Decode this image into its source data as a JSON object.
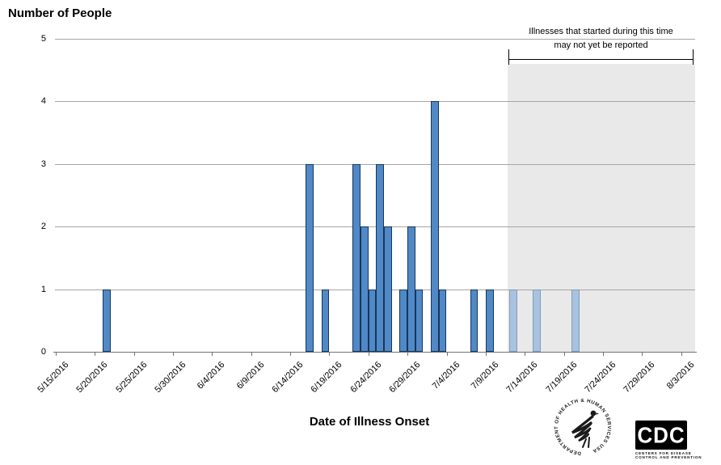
{
  "chart_data": {
    "type": "bar",
    "title": "Number of People",
    "xlabel": "Date of Illness Onset",
    "ylim": [
      0,
      5
    ],
    "yticks": [
      0,
      1,
      2,
      3,
      4,
      5
    ],
    "grid": "horizontal",
    "x_start_date": "5/15/2016",
    "x_tick_interval_days": 5,
    "x_tick_labels": [
      "5/15/2016",
      "5/20/2016",
      "5/25/2016",
      "5/30/2016",
      "6/4/2016",
      "6/9/2016",
      "6/14/2016",
      "6/19/2016",
      "6/24/2016",
      "6/29/2016",
      "7/4/2016",
      "7/9/2016",
      "7/14/2016",
      "7/19/2016",
      "7/24/2016",
      "7/29/2016",
      "8/3/2016"
    ],
    "bars": [
      {
        "date": "5/21/2016",
        "days_from_start": 6,
        "count": 1,
        "pending": false
      },
      {
        "date": "6/16/2016",
        "days_from_start": 32,
        "count": 3,
        "pending": false
      },
      {
        "date": "6/18/2016",
        "days_from_start": 34,
        "count": 1,
        "pending": false
      },
      {
        "date": "6/22/2016",
        "days_from_start": 38,
        "count": 3,
        "pending": false
      },
      {
        "date": "6/23/2016",
        "days_from_start": 39,
        "count": 2,
        "pending": false
      },
      {
        "date": "6/24/2016",
        "days_from_start": 40,
        "count": 1,
        "pending": false
      },
      {
        "date": "6/25/2016",
        "days_from_start": 41,
        "count": 3,
        "pending": false
      },
      {
        "date": "6/26/2016",
        "days_from_start": 42,
        "count": 2,
        "pending": false
      },
      {
        "date": "6/28/2016",
        "days_from_start": 44,
        "count": 1,
        "pending": false
      },
      {
        "date": "6/29/2016",
        "days_from_start": 45,
        "count": 2,
        "pending": false
      },
      {
        "date": "6/30/2016",
        "days_from_start": 46,
        "count": 1,
        "pending": false
      },
      {
        "date": "7/2/2016",
        "days_from_start": 48,
        "count": 4,
        "pending": false
      },
      {
        "date": "7/3/2016",
        "days_from_start": 49,
        "count": 1,
        "pending": false
      },
      {
        "date": "7/7/2016",
        "days_from_start": 53,
        "count": 1,
        "pending": false
      },
      {
        "date": "7/9/2016",
        "days_from_start": 55,
        "count": 1,
        "pending": false
      },
      {
        "date": "7/12/2016",
        "days_from_start": 58,
        "count": 1,
        "pending": true
      },
      {
        "date": "7/15/2016",
        "days_from_start": 61,
        "count": 1,
        "pending": true
      },
      {
        "date": "7/20/2016",
        "days_from_start": 66,
        "count": 1,
        "pending": true
      }
    ],
    "annotation": {
      "line1": "Illnesses that started during this time",
      "line2": "may not yet  be reported"
    },
    "pending_region": {
      "start_date": "7/12/2016",
      "start_days_from_start": 58
    }
  },
  "colors": {
    "bar_fill": "#5089C6",
    "bar_border": "#16365C",
    "pending_bar_fill": "#A9C2DF",
    "pending_bar_border": "#7F9DB9",
    "pending_region_fill": "#E9E9E9",
    "gridline": "#A6A6A6",
    "axis": "#737373",
    "text": "#000000"
  },
  "logos": {
    "hhs_circle_text": "DEPARTMENT OF HEALTH & HUMAN SERVICES USA",
    "cdc_acronym": "CDC",
    "cdc_name_line1": "CENTERS FOR DISEASE",
    "cdc_name_line2": "CONTROL AND PREVENTION"
  }
}
